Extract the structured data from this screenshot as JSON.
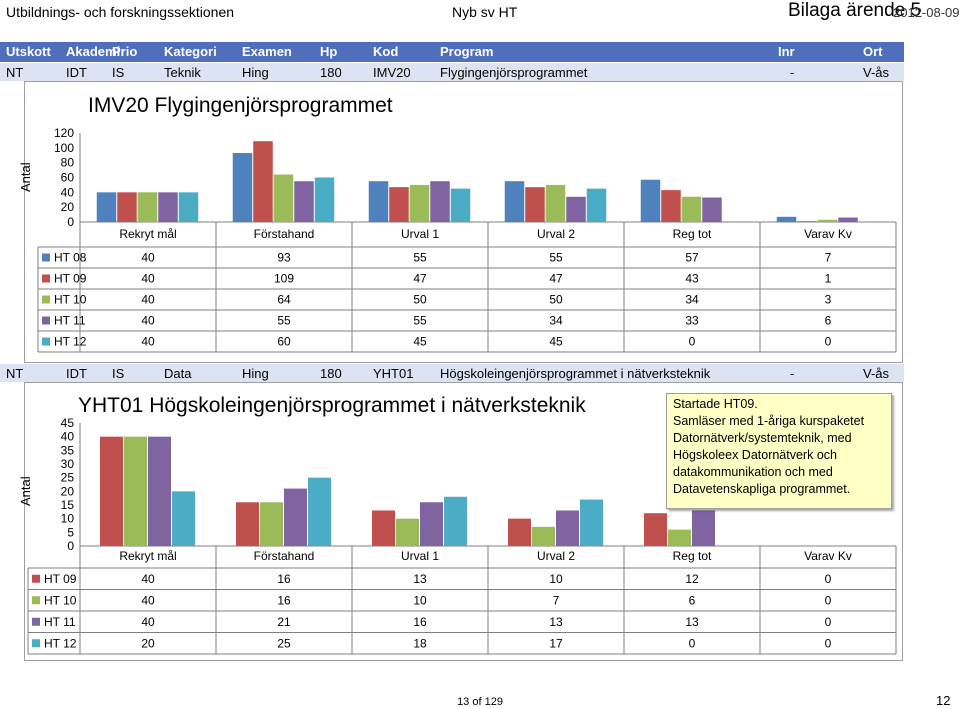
{
  "header": {
    "left": "Utbildnings- och forskningssektionen",
    "middle": "Nyb sv HT",
    "right": "Bilaga ärende 5",
    "date": "2012-08-09"
  },
  "columns": {
    "labels": [
      "Utskott",
      "Akademi",
      "Prio",
      "Kategori",
      "Examen",
      "Hp",
      "Kod",
      "Program",
      "Inr",
      "Ort"
    ]
  },
  "program1": {
    "row": [
      "NT",
      "IDT",
      "IS",
      "Teknik",
      "Hing",
      "180",
      "IMV20",
      "Flygingenjörsprogrammet",
      "-",
      "V-ås"
    ]
  },
  "program2": {
    "row": [
      "NT",
      "IDT",
      "IS",
      "Data",
      "Hing",
      "180",
      "YHT01",
      "Högskoleingenjörsprogrammet i nätverksteknik",
      "-",
      "V-ås"
    ]
  },
  "note": {
    "lines": [
      "Startade HT09.",
      "Samläser med 1-åriga kurspaketet",
      "Datornätverk/systemteknik, med",
      "Högskoleex Datornätverk och",
      "datakommunikation och med",
      "Datavetenskapliga programmet."
    ],
    "bg": "#ffffc6"
  },
  "footer": {
    "page": "13 of 129",
    "pagenum": "12"
  },
  "colors": {
    "HT 08": "#4f81bd",
    "HT 09": "#c0504d",
    "HT 10": "#9bbb59",
    "HT 11": "#8064a2",
    "HT 12": "#4bacc6"
  },
  "chart_data": [
    {
      "type": "bar",
      "title": "IMV20 Flygingenjörsprogrammet",
      "ylabel": "Antal",
      "ylim": [
        0,
        120
      ],
      "yticks": [
        0,
        20,
        40,
        60,
        80,
        100,
        120
      ],
      "categories": [
        "Rekryt mål",
        "Förstahand",
        "Urval 1",
        "Urval 2",
        "Reg tot",
        "Varav Kv"
      ],
      "series": [
        {
          "name": "HT 08",
          "values": [
            40,
            93,
            55,
            55,
            57,
            7
          ]
        },
        {
          "name": "HT 09",
          "values": [
            40,
            109,
            47,
            47,
            43,
            1
          ]
        },
        {
          "name": "HT 10",
          "values": [
            40,
            64,
            50,
            50,
            34,
            3
          ]
        },
        {
          "name": "HT 11",
          "values": [
            40,
            55,
            55,
            34,
            33,
            6
          ]
        },
        {
          "name": "HT 12",
          "values": [
            40,
            60,
            45,
            45,
            0,
            0
          ]
        }
      ],
      "legend": "bottom-table"
    },
    {
      "type": "bar",
      "title": "YHT01 Högskoleingenjörsprogrammet i nätverksteknik",
      "ylabel": "Antal",
      "ylim": [
        0,
        45
      ],
      "yticks": [
        0,
        5,
        10,
        15,
        20,
        25,
        30,
        35,
        40,
        45
      ],
      "categories": [
        "Rekryt mål",
        "Förstahand",
        "Urval 1",
        "Urval 2",
        "Reg tot",
        "Varav Kv"
      ],
      "series": [
        {
          "name": "HT 09",
          "values": [
            40,
            16,
            13,
            10,
            12,
            0
          ]
        },
        {
          "name": "HT 10",
          "values": [
            40,
            16,
            10,
            7,
            6,
            0
          ]
        },
        {
          "name": "HT 11",
          "values": [
            40,
            21,
            16,
            13,
            13,
            0
          ]
        },
        {
          "name": "HT 12",
          "values": [
            20,
            25,
            18,
            17,
            0,
            0
          ]
        }
      ],
      "legend": "bottom-table"
    }
  ]
}
